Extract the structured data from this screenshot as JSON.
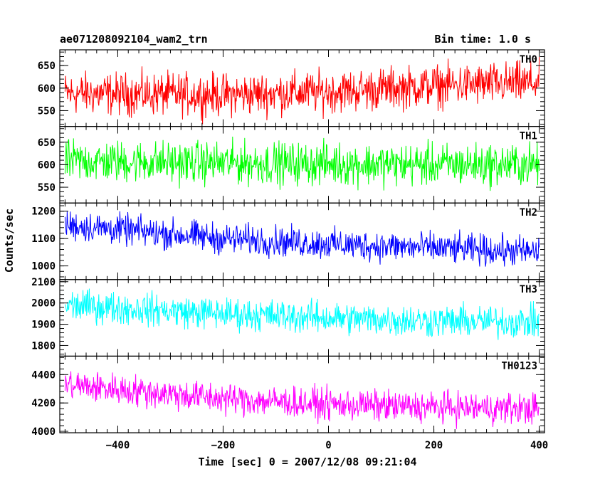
{
  "chart_data": {
    "type": "line",
    "title": "ae071208092104_wam2_trn",
    "bin_time": "Bin time: 1.0 s",
    "xlabel": "Time [sec] 0 = 2007/12/08 09:21:04",
    "ylabel": "Counts/sec",
    "xlim": [
      -510,
      410
    ],
    "x_ticks": [
      -400,
      -200,
      0,
      200,
      400
    ],
    "x_tick_labels": [
      "−400",
      "−200",
      "0",
      "200",
      "400"
    ],
    "x_start": -500,
    "x_end": 400,
    "x_step": 1,
    "panels": [
      {
        "name": "TH0",
        "color": "#ff0000",
        "ylim": [
          515,
          685
        ],
        "y_ticks": [
          550,
          600,
          650
        ],
        "trend": [
          [
            -500,
            588
          ],
          [
            -200,
            585
          ],
          [
            0,
            592
          ],
          [
            200,
            605
          ],
          [
            400,
            612
          ]
        ],
        "noise_amplitude": 40
      },
      {
        "name": "TH1",
        "color": "#00ff00",
        "ylim": [
          515,
          685
        ],
        "y_ticks": [
          550,
          600,
          650
        ],
        "trend": [
          [
            -500,
            608
          ],
          [
            -200,
            604
          ],
          [
            0,
            602
          ],
          [
            200,
            600
          ],
          [
            400,
            600
          ]
        ],
        "noise_amplitude": 40
      },
      {
        "name": "TH2",
        "color": "#0000ff",
        "ylim": [
          950,
          1230
        ],
        "y_ticks": [
          1000,
          1100,
          1200
        ],
        "trend": [
          [
            -500,
            1150
          ],
          [
            -200,
            1100
          ],
          [
            0,
            1080
          ],
          [
            200,
            1065
          ],
          [
            400,
            1050
          ]
        ],
        "noise_amplitude": 48
      },
      {
        "name": "TH3",
        "color": "#00ffff",
        "ylim": [
          1750,
          2110
        ],
        "y_ticks": [
          1800,
          1900,
          2000,
          2100
        ],
        "trend": [
          [
            -500,
            1990
          ],
          [
            -200,
            1950
          ],
          [
            0,
            1930
          ],
          [
            200,
            1915
          ],
          [
            400,
            1910
          ]
        ],
        "noise_amplitude": 65
      },
      {
        "name": "TH0123",
        "color": "#ff00ff",
        "ylim": [
          3990,
          4530
        ],
        "y_ticks": [
          4000,
          4200,
          4400
        ],
        "trend": [
          [
            -500,
            4330
          ],
          [
            -200,
            4230
          ],
          [
            0,
            4190
          ],
          [
            200,
            4170
          ],
          [
            400,
            4160
          ]
        ],
        "noise_amplitude": 95
      }
    ]
  }
}
